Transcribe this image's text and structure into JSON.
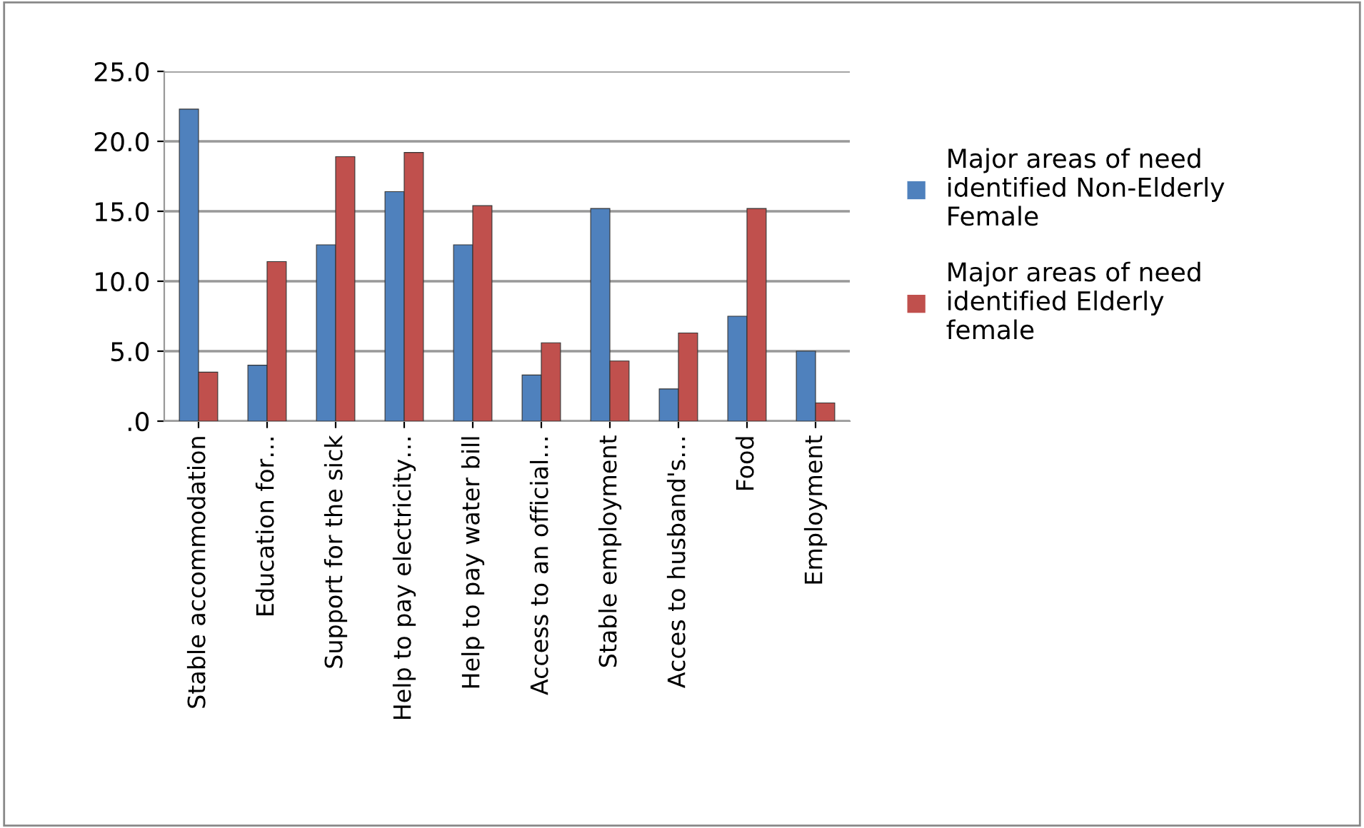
{
  "chart_data": {
    "type": "bar",
    "categories": [
      "Stable accommodation",
      "Education for…",
      "Support for the sick",
      "Help to pay electricity…",
      "Help to pay water bill",
      "Access to an official…",
      "Stable employment",
      "Acces to husband's…",
      "Food",
      "Employment"
    ],
    "series": [
      {
        "name": "Major areas of need identified Non-Elderly Female",
        "color": "#4f81bd",
        "values": [
          22.3,
          4.0,
          12.6,
          16.4,
          12.6,
          3.3,
          15.2,
          2.3,
          7.5,
          5.0
        ]
      },
      {
        "name": "Major areas of need identified Elderly female",
        "color": "#c0504d",
        "values": [
          3.5,
          11.4,
          18.9,
          19.2,
          15.4,
          5.6,
          4.3,
          6.3,
          15.2,
          1.3
        ]
      }
    ],
    "ylim": [
      0,
      25
    ],
    "yticks": [
      {
        "value": 0,
        "label": ".0"
      },
      {
        "value": 5,
        "label": "5.0"
      },
      {
        "value": 10,
        "label": "10.0"
      },
      {
        "value": 15,
        "label": "15.0"
      },
      {
        "value": 20,
        "label": "20.0"
      },
      {
        "value": 25,
        "label": "25.0"
      }
    ],
    "grid": "y",
    "legend": "right"
  }
}
